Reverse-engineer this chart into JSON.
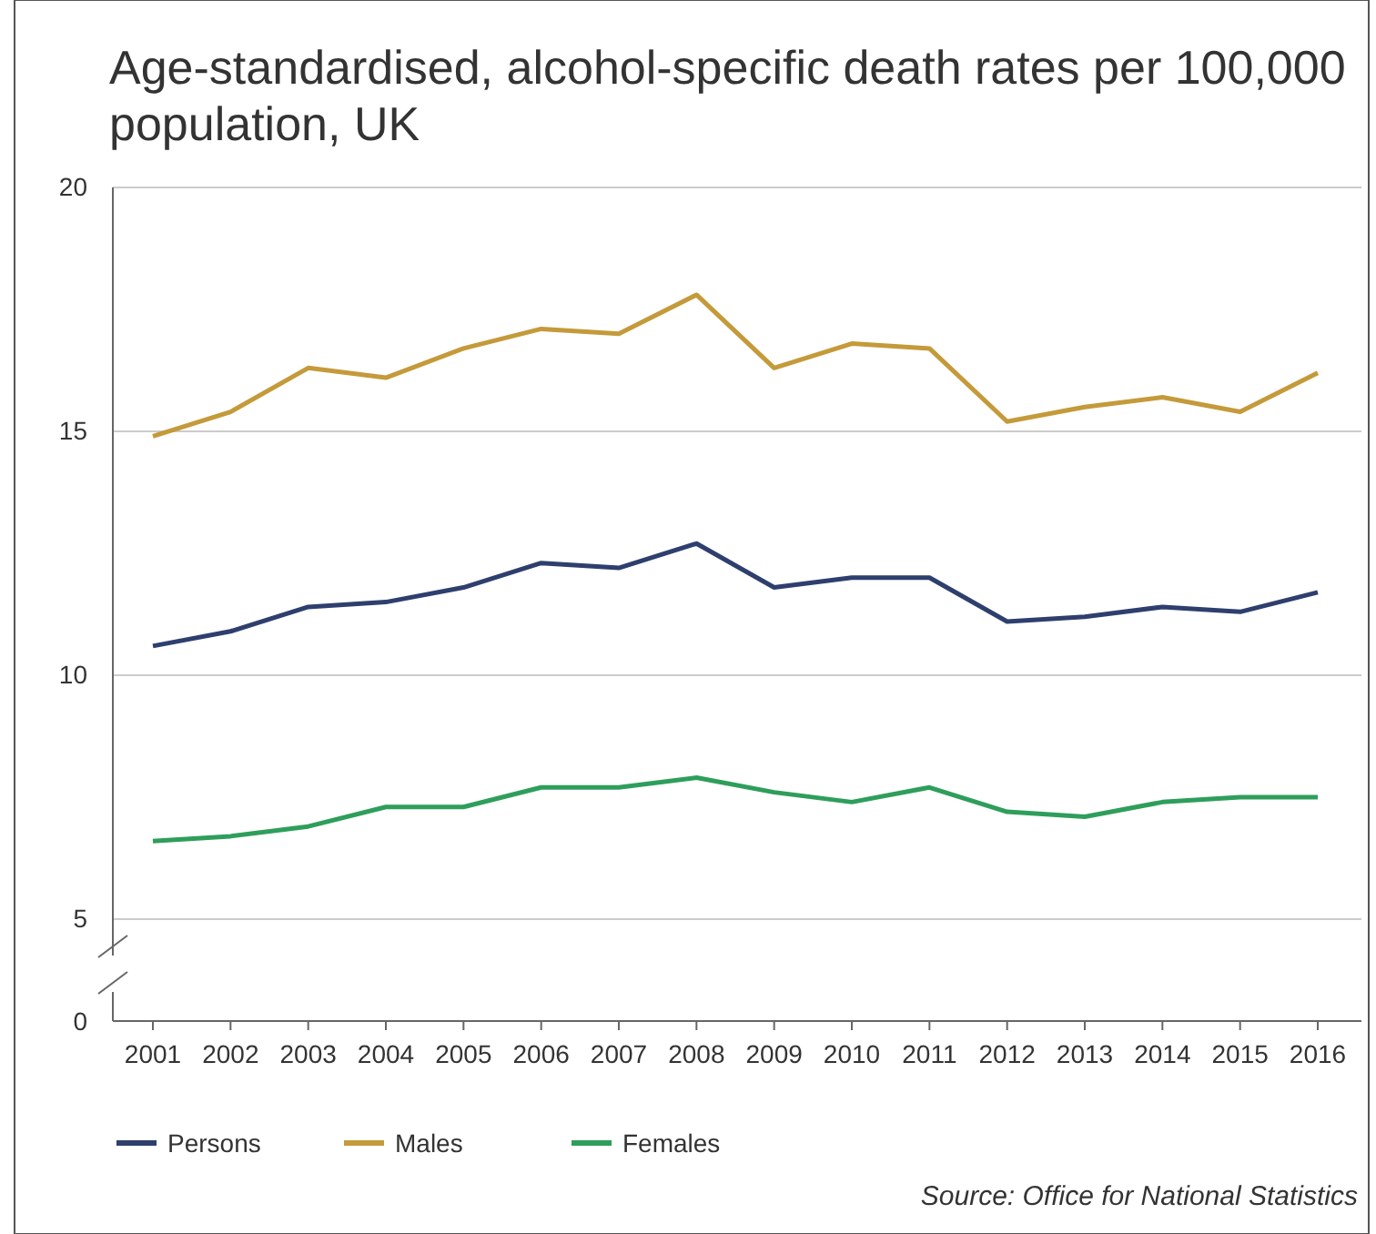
{
  "chart_data": {
    "type": "line",
    "title": "Age-standardised, alcohol-specific death rates per 100,000 population, UK",
    "categories": [
      "2001",
      "2002",
      "2003",
      "2004",
      "2005",
      "2006",
      "2007",
      "2008",
      "2009",
      "2010",
      "2011",
      "2012",
      "2013",
      "2014",
      "2015",
      "2016"
    ],
    "series": [
      {
        "name": "Persons",
        "color": "#2e3f6e",
        "values": [
          10.6,
          10.9,
          11.4,
          11.5,
          11.8,
          12.3,
          12.2,
          12.7,
          11.8,
          12.0,
          12.0,
          11.1,
          11.2,
          11.4,
          11.3,
          11.7
        ]
      },
      {
        "name": "Males",
        "color": "#c49a3a",
        "values": [
          14.9,
          15.4,
          16.3,
          16.1,
          16.7,
          17.1,
          17.0,
          17.8,
          16.3,
          16.8,
          16.7,
          15.2,
          15.5,
          15.7,
          15.4,
          16.2
        ]
      },
      {
        "name": "Females",
        "color": "#2e9e5b",
        "values": [
          6.6,
          6.7,
          6.9,
          7.3,
          7.3,
          7.7,
          7.7,
          7.9,
          7.6,
          7.4,
          7.7,
          7.2,
          7.1,
          7.4,
          7.5,
          7.5
        ]
      }
    ],
    "ylim": [
      5,
      20
    ],
    "yticks": [
      5,
      10,
      15,
      20
    ],
    "grid": "y",
    "legend": "bottom",
    "marker": "none",
    "line_style": "solid",
    "annotations": [
      "0",
      "Source: Office for National Statistics"
    ]
  }
}
